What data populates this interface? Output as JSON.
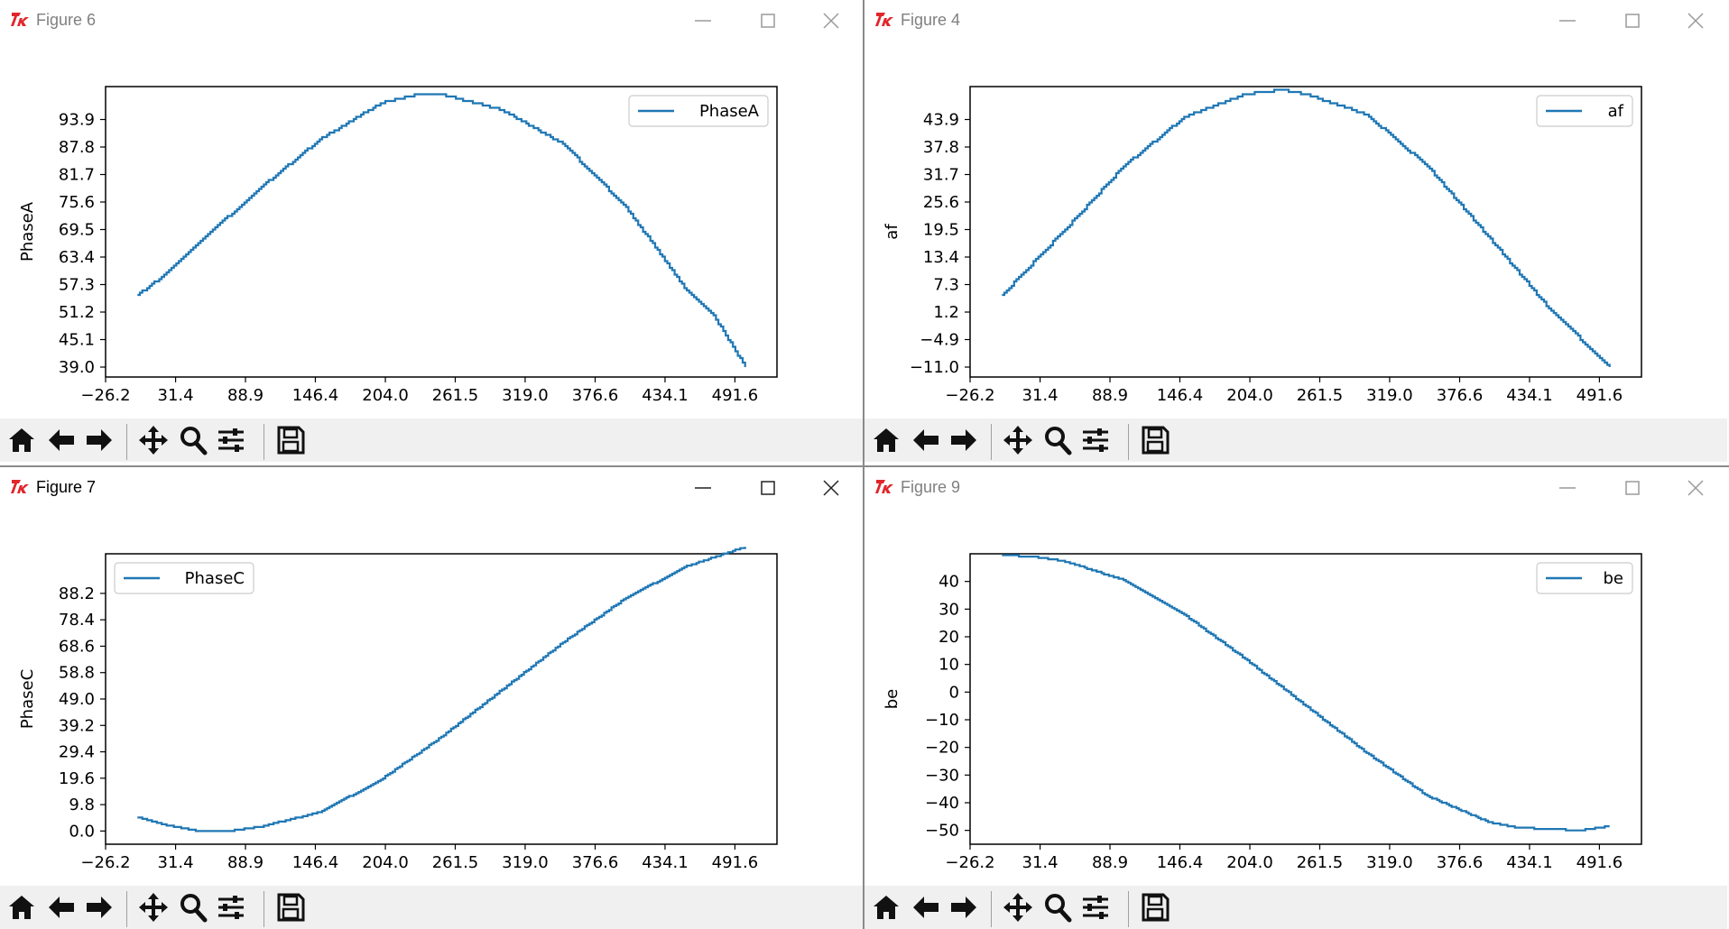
{
  "colors": {
    "line": "#1f77b4",
    "axis": "#000000",
    "toolbar_bg": "#f0f0f0",
    "inactive_title": "#808080"
  },
  "windows": [
    {
      "title": "Figure 6",
      "active": false,
      "chart_data": {
        "type": "line",
        "series": [
          {
            "name": "PhaseA",
            "x": [
              0,
              25,
              50,
              100,
              150,
              200,
              230,
              250,
              300,
              350,
              400,
              425,
              450,
              475,
              500
            ],
            "values": [
              55.0,
              60.0,
              66.5,
              78.5,
              89.5,
              97.5,
              99.5,
              99.5,
              96.0,
              88.5,
              75.0,
              66.0,
              56.5,
              50.0,
              39.0
            ]
          }
        ],
        "ylabel": "PhaseA",
        "xlabel": "",
        "xticks": [
          "−26.2",
          "31.4",
          "88.9",
          "146.4",
          "204.0",
          "261.5",
          "319.0",
          "376.6",
          "434.1",
          "491.6"
        ],
        "yticks": [
          "39.0",
          "45.1",
          "51.2",
          "57.3",
          "63.4",
          "69.5",
          "75.6",
          "81.7",
          "87.8",
          "93.9"
        ],
        "xlim": [
          -26.2,
          526.2
        ],
        "ylim": [
          36.8,
          101.2
        ],
        "legend": "top-right"
      }
    },
    {
      "title": "Figure 4",
      "active": false,
      "chart_data": {
        "type": "line",
        "series": [
          {
            "name": "af",
            "x": [
              0,
              25,
              50,
              100,
              150,
              200,
              230,
              250,
              300,
              350,
              400,
              450,
              500
            ],
            "values": [
              5.0,
              12.0,
              19.0,
              33.5,
              44.5,
              49.5,
              50.5,
              49.5,
              45.0,
              33.5,
              18.0,
              2.0,
              -11.0
            ]
          }
        ],
        "ylabel": "af",
        "xlabel": "",
        "xticks": [
          "−26.2",
          "31.4",
          "88.9",
          "146.4",
          "204.0",
          "261.5",
          "319.0",
          "376.6",
          "434.1",
          "491.6"
        ],
        "yticks": [
          "−11.0",
          "−4.9",
          "1.2",
          "7.3",
          "13.4",
          "19.5",
          "25.6",
          "31.7",
          "37.8",
          "43.9"
        ],
        "xlim": [
          -26.2,
          526.2
        ],
        "ylim": [
          -13.2,
          51.2
        ],
        "legend": "top-right"
      }
    },
    {
      "title": "Figure 7",
      "active": true,
      "chart_data": {
        "type": "line",
        "series": [
          {
            "name": "PhaseC",
            "x": [
              0,
              25,
              50,
              75,
              100,
              150,
              200,
              250,
              300,
              350,
              400,
              450,
              500
            ],
            "values": [
              5.0,
              2.0,
              0.0,
              0.0,
              1.5,
              7.0,
              19.0,
              35.0,
              52.5,
              70.0,
              86.0,
              98.0,
              105.5
            ]
          }
        ],
        "ylabel": "PhaseC",
        "xlabel": "",
        "xticks": [
          "−26.2",
          "31.4",
          "88.9",
          "146.4",
          "204.0",
          "261.5",
          "319.0",
          "376.6",
          "434.1",
          "491.6"
        ],
        "yticks": [
          "0.0",
          "9.8",
          "19.6",
          "29.4",
          "39.2",
          "49.0",
          "58.8",
          "68.6",
          "78.4",
          "88.2"
        ],
        "xlim": [
          -26.2,
          526.2
        ],
        "ylim": [
          -4.9,
          102.9
        ],
        "legend": "top-left"
      }
    },
    {
      "title": "Figure 9",
      "active": false,
      "chart_data": {
        "type": "line",
        "series": [
          {
            "name": "be",
            "x": [
              0,
              25,
              50,
              100,
              150,
              200,
              250,
              300,
              350,
              400,
              425,
              450,
              475,
              500
            ],
            "values": [
              49.5,
              49.0,
              47.5,
              40.5,
              28.0,
              12.0,
              -5.0,
              -22.0,
              -37.5,
              -47.0,
              -49.0,
              -49.5,
              -50.0,
              -48.5
            ]
          }
        ],
        "ylabel": "be",
        "xlabel": "",
        "xticks": [
          "−26.2",
          "31.4",
          "88.9",
          "146.4",
          "204.0",
          "261.5",
          "319.0",
          "376.6",
          "434.1",
          "491.6"
        ],
        "yticks": [
          "−50",
          "−40",
          "−30",
          "−20",
          "−10",
          "0",
          "10",
          "20",
          "30",
          "40"
        ],
        "xlim": [
          -26.2,
          526.2
        ],
        "ylim": [
          -55,
          50
        ],
        "legend": "top-right"
      }
    }
  ],
  "toolbar_icons": [
    "home-icon",
    "back-arrow-icon",
    "forward-arrow-icon",
    "pan-icon",
    "zoom-icon",
    "configure-subplots-icon",
    "save-icon"
  ]
}
